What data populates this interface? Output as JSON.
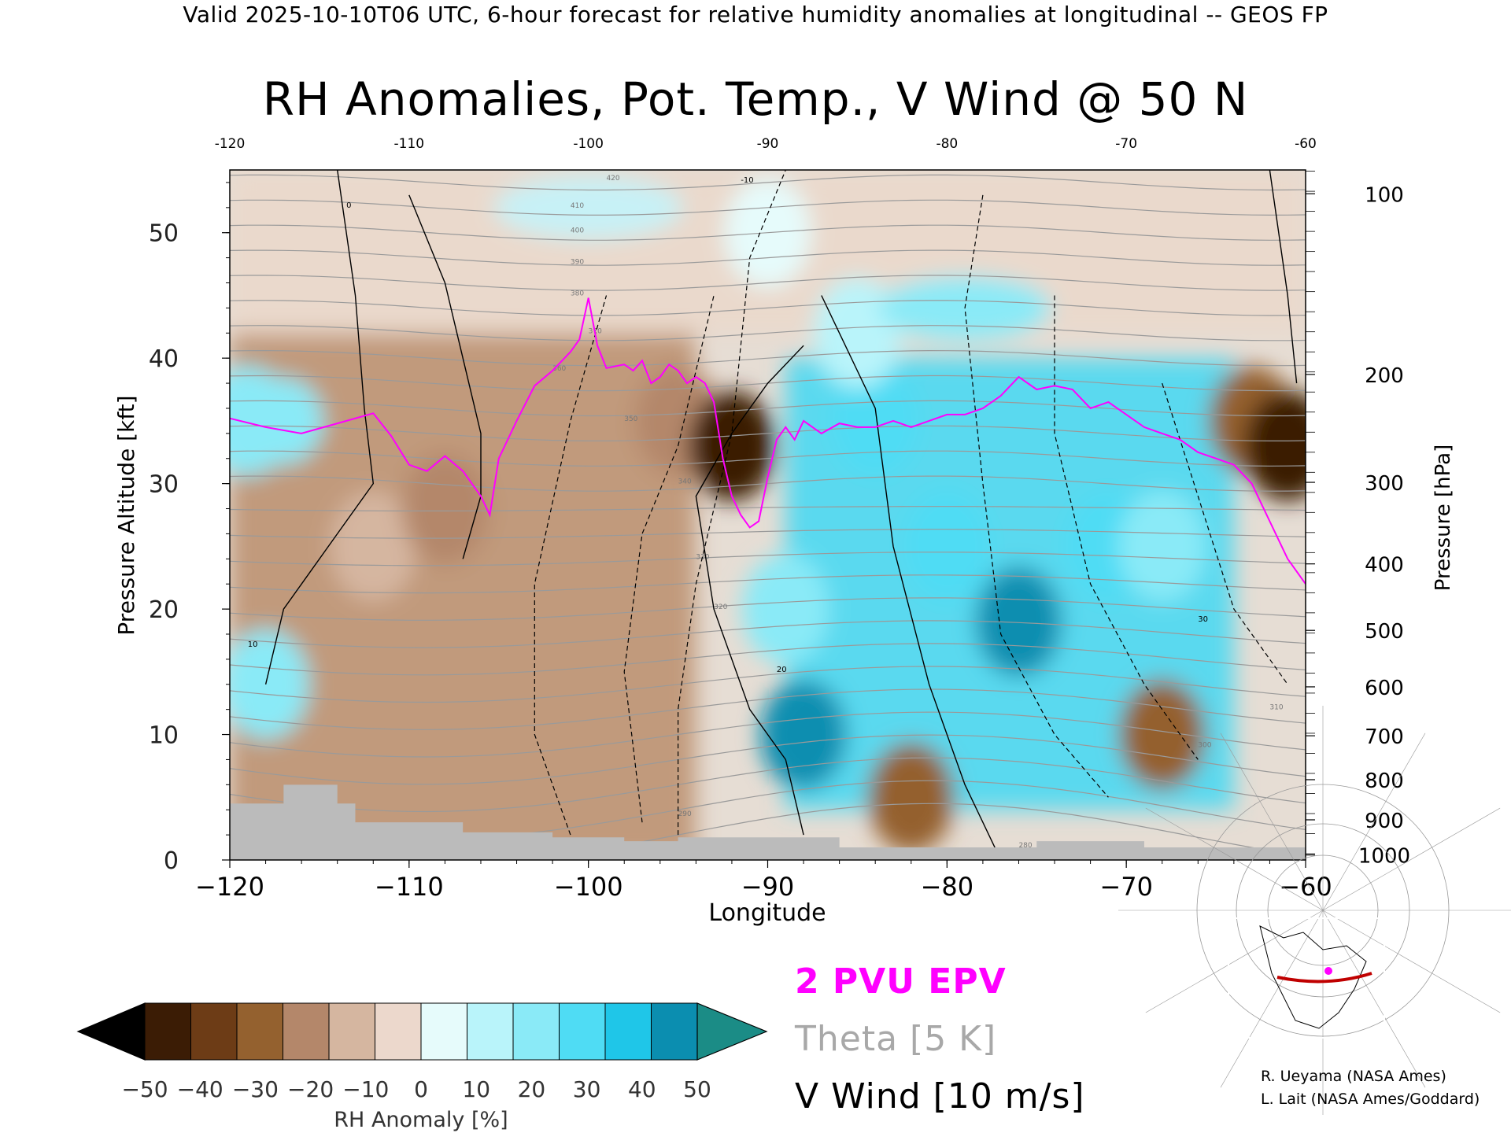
{
  "header": "Valid 2025-10-10T06 UTC, 6-hour forecast for relative humidity anomalies at longitudinal -- GEOS FP",
  "chart_data": {
    "type": "heatmap",
    "title": "RH Anomalies, Pot. Temp., V Wind @ 50 N",
    "xlabel": "Longitude",
    "ylabel": "Pressure Altitude [kft]",
    "y2label": "Pressure [hPa]",
    "xlim": [
      -120,
      -60
    ],
    "ylim": [
      0,
      55
    ],
    "x_ticks": [
      -120,
      -110,
      -100,
      -90,
      -80,
      -70,
      -60
    ],
    "x_tick_labels": [
      "−120",
      "−110",
      "−100",
      "−90",
      "−80",
      "−70",
      "−60"
    ],
    "top_tick_labels": [
      "-120",
      "-110",
      "-100",
      "-90",
      "-80",
      "-70",
      "-60"
    ],
    "y_ticks": [
      0,
      10,
      20,
      30,
      40,
      50
    ],
    "pressure_ticks": [
      {
        "label": "100",
        "kft": 53.1
      },
      {
        "label": "200",
        "kft": 38.7
      },
      {
        "label": "300",
        "kft": 30.1
      },
      {
        "label": "400",
        "kft": 23.6
      },
      {
        "label": "500",
        "kft": 18.3
      },
      {
        "label": "600",
        "kft": 13.8
      },
      {
        "label": "700",
        "kft": 9.9
      },
      {
        "label": "800",
        "kft": 6.4
      },
      {
        "label": "900",
        "kft": 3.2
      },
      {
        "label": "1000",
        "kft": 0.4
      }
    ],
    "colorbar": {
      "label": "RH Anomaly [%]",
      "ticks": [
        "−50",
        "−40",
        "−30",
        "−20",
        "−10",
        "0",
        "10",
        "20",
        "30",
        "40",
        "50"
      ],
      "colors": [
        "#000000",
        "#3b1c05",
        "#6d3c16",
        "#94612f",
        "#b4876a",
        "#d5b6a0",
        "#ecd8cc",
        "#e6fbfb",
        "#b9f4fa",
        "#8aeaf7",
        "#4fdcf4",
        "#1fc6e8",
        "#0b8eb0",
        "#1b8c86"
      ]
    },
    "legend": [
      {
        "label": "2 PVU EPV",
        "color": "#ff00ff"
      },
      {
        "label": "Theta [5 K]",
        "color": "#a8a8a8"
      },
      {
        "label": "V Wind [10 m/s]",
        "color": "#000000"
      }
    ],
    "theta_contour_labels": [
      "280",
      "290",
      "300",
      "310",
      "320",
      "330",
      "340",
      "350",
      "360",
      "370",
      "380",
      "390",
      "400",
      "410",
      "420"
    ],
    "vwind_contour_labels": [
      "-10",
      "0",
      "10",
      "20",
      "30"
    ],
    "pvu_line": {
      "lon": [
        -120,
        -118,
        -116,
        -114,
        -112,
        -111,
        -110,
        -109,
        -108,
        -107,
        -106,
        -105.5,
        -105,
        -104,
        -103,
        -102,
        -101,
        -100.5,
        -100,
        -99.5,
        -99,
        -98,
        -97.5,
        -97,
        -96.5,
        -96,
        -95.5,
        -95,
        -94.5,
        -94,
        -93.5,
        -93,
        -92.5,
        -92,
        -91.5,
        -91,
        -90.5,
        -90,
        -89.5,
        -89,
        -88.5,
        -88,
        -87,
        -86,
        -85,
        -84,
        -83,
        -82,
        -81,
        -80,
        -79,
        -78,
        -77,
        -76,
        -75,
        -74,
        -73,
        -72,
        -71,
        -70,
        -69,
        -68,
        -67,
        -66,
        -65,
        -64,
        -63,
        -62,
        -61,
        -60
      ],
      "kft": [
        35.2,
        34.5,
        34.0,
        34.8,
        35.6,
        33.8,
        31.5,
        31.0,
        32.2,
        31.0,
        29.0,
        27.5,
        32.0,
        35.0,
        37.8,
        39.0,
        40.5,
        41.5,
        44.8,
        41.0,
        39.2,
        39.5,
        39.0,
        39.8,
        38.0,
        38.5,
        39.5,
        39.0,
        38.0,
        38.5,
        38.0,
        36.5,
        32.0,
        29.0,
        27.5,
        26.5,
        27.0,
        30.5,
        33.5,
        34.5,
        33.5,
        35.0,
        34.0,
        34.8,
        34.5,
        34.5,
        35.0,
        34.5,
        35.0,
        35.5,
        35.5,
        36.0,
        37.0,
        38.5,
        37.5,
        37.8,
        37.5,
        36.0,
        36.5,
        35.5,
        34.5,
        34.0,
        33.5,
        32.5,
        32.0,
        31.5,
        30.0,
        27.0,
        24.0,
        22.0
      ]
    },
    "rh_field_sample": [
      {
        "lon": -119,
        "kft": 35,
        "value": 20
      },
      {
        "lon": -118,
        "kft": 14,
        "value": 20
      },
      {
        "lon": -112,
        "kft": 25,
        "value": -20
      },
      {
        "lon": -108,
        "kft": 28,
        "value": -30
      },
      {
        "lon": -95,
        "kft": 35,
        "value": -30
      },
      {
        "lon": -92,
        "kft": 33,
        "value": -55
      },
      {
        "lon": -89,
        "kft": 20,
        "value": 25
      },
      {
        "lon": -88,
        "kft": 10,
        "value": 55
      },
      {
        "lon": -84,
        "kft": 35,
        "value": 35
      },
      {
        "lon": -80,
        "kft": 25,
        "value": 30
      },
      {
        "lon": -76,
        "kft": 19,
        "value": 55
      },
      {
        "lon": -71,
        "kft": 25,
        "value": 35
      },
      {
        "lon": -68,
        "kft": 25,
        "value": 25
      },
      {
        "lon": -63,
        "kft": 35,
        "value": -40
      },
      {
        "lon": -61,
        "kft": 33,
        "value": -55
      },
      {
        "lon": -90,
        "kft": 50,
        "value": 0
      },
      {
        "lon": -85,
        "kft": 42,
        "value": 15
      },
      {
        "lon": -82,
        "kft": 5,
        "value": -35
      },
      {
        "lon": -68,
        "kft": 10,
        "value": -35
      }
    ]
  },
  "credits": [
    "R. Ueyama (NASA Ames)",
    "L. Lait (NASA Ames/Goddard)"
  ]
}
